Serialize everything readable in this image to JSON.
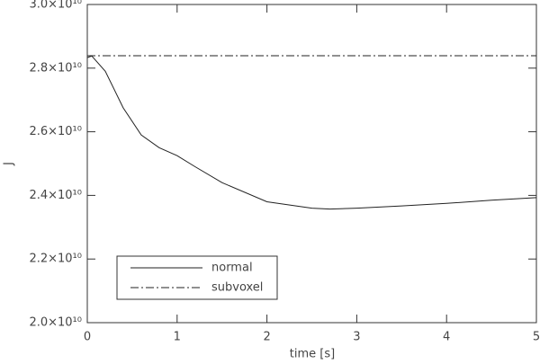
{
  "chart_data": {
    "type": "line",
    "xlabel": "time [s]",
    "ylabel": "J",
    "xlim": [
      0,
      5
    ],
    "xticks": [
      0,
      1,
      2,
      3,
      4,
      5
    ],
    "ylim": [
      20000000000,
      30000000000
    ],
    "yticks": [
      {
        "value": 20000000000,
        "label": "2.0×10¹⁰"
      },
      {
        "value": 22000000000,
        "label": "2.2×10¹⁰"
      },
      {
        "value": 24000000000,
        "label": "2.4×10¹⁰"
      },
      {
        "value": 26000000000,
        "label": "2.6×10¹⁰"
      },
      {
        "value": 28000000000,
        "label": "2.8×10¹⁰"
      },
      {
        "value": 30000000000,
        "label": "3.0×10¹⁰"
      }
    ],
    "legend": "lower-left",
    "series": [
      {
        "name": "normal",
        "color": "#222222",
        "linestyle": "solid",
        "x": [
          0,
          0.05,
          0.2,
          0.4,
          0.6,
          0.8,
          1.0,
          1.2,
          1.5,
          2.0,
          2.5,
          2.7,
          3.0,
          3.5,
          4.0,
          4.5,
          5.0
        ],
        "values": [
          28330000000,
          28380000000,
          27900000000,
          26750000000,
          25900000000,
          25500000000,
          25250000000,
          24900000000,
          24400000000,
          23800000000,
          23600000000,
          23570000000,
          23600000000,
          23670000000,
          23750000000,
          23850000000,
          23930000000
        ]
      },
      {
        "name": "subvoxel",
        "color": "#222222",
        "linestyle": "dashdot",
        "x": [
          0,
          5
        ],
        "values": [
          28390000000,
          28390000000
        ]
      }
    ]
  }
}
